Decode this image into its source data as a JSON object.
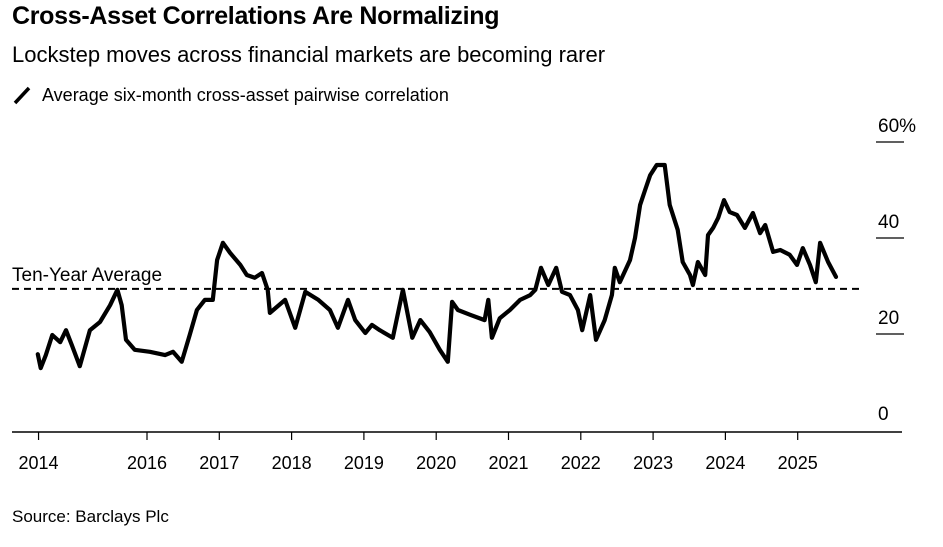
{
  "header": {
    "title": "Cross-Asset Correlations Are Normalizing",
    "subtitle": "Lockstep moves across financial markets are becoming rarer"
  },
  "legend": {
    "icon": "line-swatch-icon",
    "label": "Average six-month cross-asset pairwise correlation"
  },
  "footer": {
    "source": "Source: Barclays Plc"
  },
  "colors": {
    "series": "#000000",
    "axis": "#000000",
    "text": "#000000",
    "background": "#ffffff"
  },
  "chart_data": {
    "type": "line",
    "title": "Cross-Asset Correlations Are Normalizing",
    "subtitle": "Lockstep moves across financial markets are becoming rarer",
    "xlabel": "",
    "ylabel": "",
    "y_unit": "%",
    "ylim": [
      0,
      60
    ],
    "xlim": [
      2014.15,
      2026.45
    ],
    "grid": false,
    "legend_position": "top-left",
    "y_ticks": [
      {
        "value": 0,
        "label": "0"
      },
      {
        "value": 20,
        "label": "20"
      },
      {
        "value": 40,
        "label": "40"
      },
      {
        "value": 60,
        "label": "60%"
      }
    ],
    "x_ticks": [
      {
        "value": 2014.5,
        "label": "2014"
      },
      {
        "value": 2016,
        "label": "2016"
      },
      {
        "value": 2017,
        "label": "2017"
      },
      {
        "value": 2018,
        "label": "2018"
      },
      {
        "value": 2019,
        "label": "2019"
      },
      {
        "value": 2020,
        "label": "2020"
      },
      {
        "value": 2021,
        "label": "2021"
      },
      {
        "value": 2022,
        "label": "2022"
      },
      {
        "value": 2023,
        "label": "2023"
      },
      {
        "value": 2024,
        "label": "2024"
      },
      {
        "value": 2025,
        "label": "2025"
      }
    ],
    "reference_line": {
      "label": "Ten-Year Average",
      "value": 29.4,
      "style": "dashed"
    },
    "series": [
      {
        "name": "Average six-month cross-asset pairwise correlation",
        "x": [
          2014.49,
          2014.53,
          2014.6,
          2014.69,
          2014.8,
          2014.88,
          2014.96,
          2015.07,
          2015.21,
          2015.35,
          2015.49,
          2015.59,
          2015.65,
          2015.71,
          2015.83,
          2016.04,
          2016.25,
          2016.36,
          2016.48,
          2016.59,
          2016.69,
          2016.8,
          2016.91,
          2016.97,
          2017.05,
          2017.15,
          2017.29,
          2017.38,
          2017.49,
          2017.59,
          2017.67,
          2017.7,
          2017.91,
          2018.05,
          2018.19,
          2018.37,
          2018.53,
          2018.64,
          2018.78,
          2018.88,
          2019.02,
          2019.11,
          2019.22,
          2019.4,
          2019.54,
          2019.67,
          2019.78,
          2019.91,
          2020.05,
          2020.16,
          2020.22,
          2020.3,
          2020.47,
          2020.67,
          2020.72,
          2020.77,
          2020.88,
          2021.02,
          2021.16,
          2021.3,
          2021.37,
          2021.45,
          2021.55,
          2021.66,
          2021.74,
          2021.85,
          2021.96,
          2022.02,
          2022.13,
          2022.21,
          2022.33,
          2022.43,
          2022.47,
          2022.54,
          2022.68,
          2022.75,
          2022.82,
          2022.89,
          2022.96,
          2023.05,
          2023.16,
          2023.23,
          2023.34,
          2023.41,
          2023.51,
          2023.55,
          2023.62,
          2023.72,
          2023.76,
          2023.83,
          2023.9,
          2023.98,
          2024.06,
          2024.16,
          2024.27,
          2024.38,
          2024.48,
          2024.55,
          2024.66,
          2024.76,
          2024.89,
          2024.99,
          2025.07,
          2025.17,
          2025.25,
          2025.31,
          2025.42,
          2025.53
        ],
        "values": [
          15.8,
          12.9,
          15.6,
          19.8,
          18.3,
          20.8,
          17.7,
          13.3,
          20.8,
          22.5,
          26.0,
          29.2,
          26.0,
          18.8,
          16.7,
          16.3,
          15.6,
          16.3,
          14.2,
          19.8,
          25.0,
          27.1,
          27.1,
          35.4,
          39.0,
          36.9,
          34.4,
          32.3,
          31.7,
          32.7,
          29.2,
          24.4,
          27.1,
          21.3,
          28.8,
          27.1,
          25.0,
          21.3,
          27.1,
          22.9,
          20.2,
          21.9,
          20.8,
          19.2,
          29.2,
          19.2,
          22.9,
          20.4,
          16.7,
          14.2,
          26.7,
          25.0,
          24.0,
          22.9,
          27.1,
          19.2,
          23.3,
          25.0,
          27.1,
          28.1,
          29.2,
          33.8,
          30.2,
          33.8,
          28.8,
          28.1,
          25.0,
          20.8,
          28.1,
          18.8,
          22.9,
          28.1,
          33.8,
          30.8,
          35.4,
          40.0,
          46.9,
          50.0,
          53.1,
          55.2,
          55.2,
          46.9,
          41.7,
          35.0,
          32.3,
          30.2,
          35.0,
          32.3,
          40.6,
          42.1,
          44.2,
          47.9,
          45.4,
          44.8,
          42.1,
          45.2,
          41.0,
          42.7,
          37.1,
          37.5,
          36.5,
          34.4,
          37.9,
          34.4,
          30.8,
          39.0,
          35.0,
          31.9
        ]
      }
    ]
  }
}
